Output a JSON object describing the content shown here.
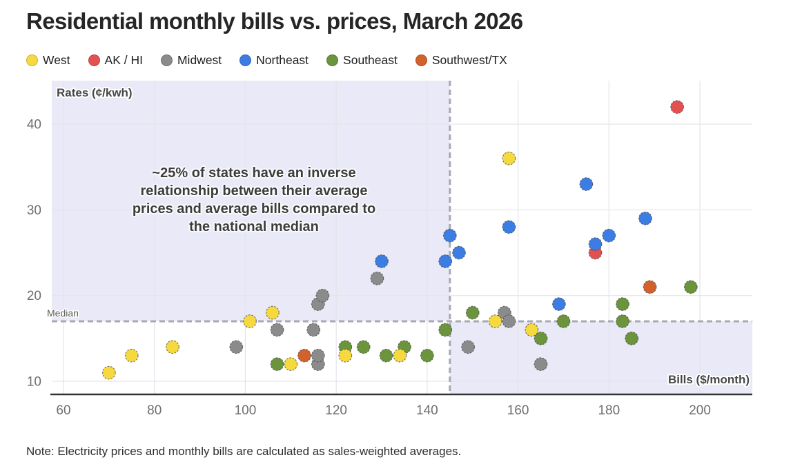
{
  "title": "Residential monthly bills vs. prices, March 2026",
  "note": "Note: Electricity prices and monthly bills are calculated as sales-weighted averages.",
  "legend": {
    "items": [
      {
        "label": "West",
        "color": "#F5D93F"
      },
      {
        "label": "AK / HI",
        "color": "#E35050"
      },
      {
        "label": "Midwest",
        "color": "#8B8B8B"
      },
      {
        "label": "Northeast",
        "color": "#3C7DE3"
      },
      {
        "label": "Southeast",
        "color": "#6B943C"
      },
      {
        "label": "Southwest/TX",
        "color": "#D2622B"
      }
    ]
  },
  "chart_data": {
    "type": "scatter",
    "title": "Residential monthly bills vs. prices, March 2026",
    "xlabel": "Bills ($/month)",
    "ylabel": "Rates (¢/kwh)",
    "xlim": [
      57,
      212
    ],
    "ylim": [
      8.5,
      45
    ],
    "xticks": [
      60,
      80,
      100,
      120,
      140,
      160,
      180,
      200
    ],
    "yticks": [
      10,
      20,
      30,
      40
    ],
    "grid": true,
    "median_rate": 17,
    "median_bill": 145,
    "median_label": "Median",
    "annotation_lines": [
      "~25% of states have an inverse",
      "relationship between their average",
      "prices and average bills compared to",
      "the national median"
    ],
    "quadrant_shade_color": "#E9E9F7",
    "shaded_quadrants": "upper-left (low bills, high rates) and lower-right (high bills, low rates) relative to the medians",
    "series": [
      {
        "name": "West",
        "color": "#F5D93F",
        "points": [
          [
            70,
            11
          ],
          [
            75,
            13
          ],
          [
            84,
            14
          ],
          [
            101,
            17
          ],
          [
            106,
            18
          ],
          [
            110,
            12
          ],
          [
            122,
            13
          ],
          [
            134,
            13
          ],
          [
            155,
            17
          ],
          [
            158,
            36
          ],
          [
            163,
            16
          ]
        ]
      },
      {
        "name": "AK / HI",
        "color": "#E35050",
        "points": [
          [
            177,
            25
          ],
          [
            195,
            42
          ]
        ]
      },
      {
        "name": "Midwest",
        "color": "#8B8B8B",
        "points": [
          [
            98,
            14
          ],
          [
            107,
            16
          ],
          [
            115,
            16
          ],
          [
            116,
            12
          ],
          [
            116,
            13
          ],
          [
            116,
            19
          ],
          [
            117,
            20
          ],
          [
            129,
            22
          ],
          [
            149,
            14
          ],
          [
            157,
            18
          ],
          [
            158,
            17
          ],
          [
            165,
            12
          ]
        ]
      },
      {
        "name": "Northeast",
        "color": "#3C7DE3",
        "points": [
          [
            130,
            24
          ],
          [
            144,
            24
          ],
          [
            145,
            27
          ],
          [
            147,
            25
          ],
          [
            158,
            28
          ],
          [
            169,
            19
          ],
          [
            175,
            33
          ],
          [
            177,
            26
          ],
          [
            180,
            27
          ],
          [
            188,
            29
          ]
        ]
      },
      {
        "name": "Southeast",
        "color": "#6B943C",
        "points": [
          [
            107,
            12
          ],
          [
            122,
            14
          ],
          [
            126,
            14
          ],
          [
            131,
            13
          ],
          [
            135,
            14
          ],
          [
            140,
            13
          ],
          [
            144,
            16
          ],
          [
            150,
            18
          ],
          [
            165,
            15
          ],
          [
            170,
            17
          ],
          [
            183,
            17
          ],
          [
            183,
            19
          ],
          [
            185,
            15
          ],
          [
            198,
            21
          ]
        ]
      },
      {
        "name": "Southwest/TX",
        "color": "#D2622B",
        "points": [
          [
            113,
            13
          ],
          [
            189,
            21
          ]
        ]
      }
    ],
    "style": {
      "gridline_color": "#E4E4EC",
      "dashed_line_color": "#A8A8B4",
      "axis_line_color": "#333333",
      "tick_label_color": "#6e6e6e"
    }
  }
}
